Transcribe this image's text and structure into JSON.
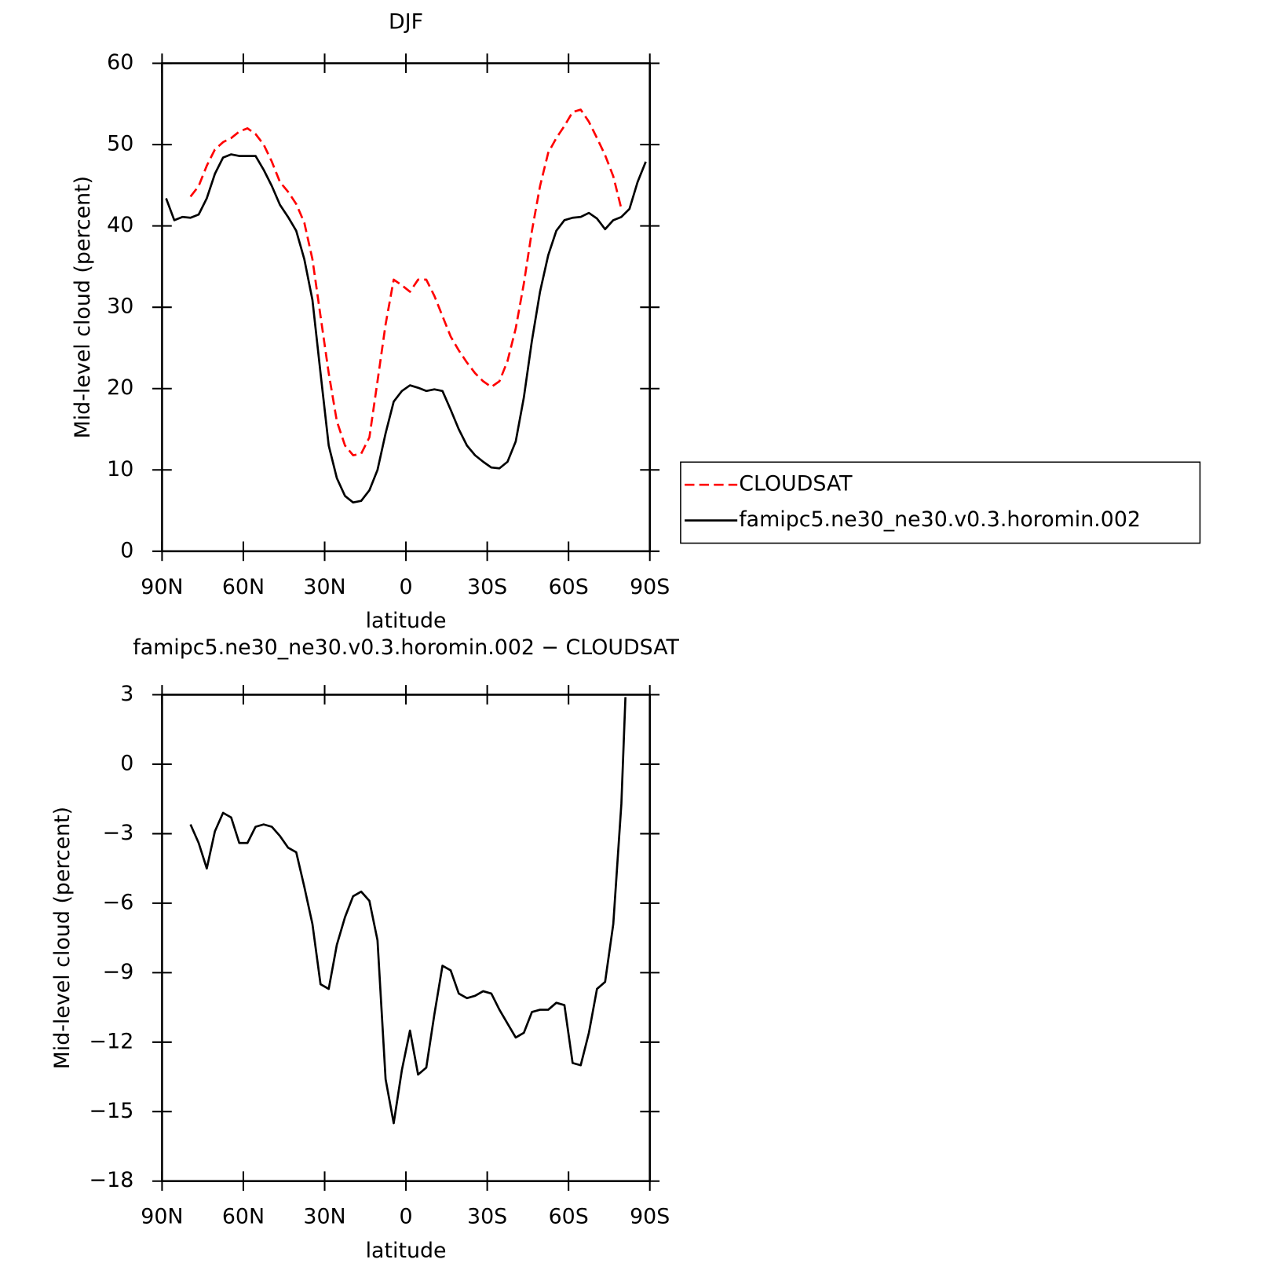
{
  "chart_data": [
    {
      "type": "line",
      "title": "DJF",
      "xlabel": "latitude",
      "ylabel": "Mid-level cloud (percent)",
      "x": [
        88.5,
        85.5,
        82.5,
        79.5,
        76.5,
        73.5,
        70.5,
        67.5,
        64.5,
        61.5,
        58.5,
        55.5,
        52.5,
        49.5,
        46.5,
        43.5,
        40.5,
        37.5,
        34.5,
        31.5,
        28.5,
        25.5,
        22.5,
        19.5,
        16.5,
        13.5,
        10.5,
        7.5,
        4.5,
        1.5,
        -1.5,
        -4.5,
        -7.5,
        -10.5,
        -13.5,
        -16.5,
        -19.5,
        -22.5,
        -25.5,
        -28.5,
        -31.5,
        -34.5,
        -37.5,
        -40.5,
        -43.5,
        -46.5,
        -49.5,
        -52.5,
        -55.5,
        -58.5,
        -61.5,
        -64.5,
        -67.5,
        -70.5,
        -73.5,
        -76.5,
        -79.5,
        -82.5,
        -85.5,
        -88.5
      ],
      "series": [
        {
          "name": "CLOUDSAT",
          "color": "#ff0000",
          "dash": true,
          "values": [
            null,
            null,
            null,
            43.6,
            44.9,
            47.4,
            49.4,
            50.3,
            50.8,
            51.6,
            52.0,
            51.3,
            50.0,
            47.9,
            45.4,
            44.2,
            42.7,
            40.4,
            35.9,
            28.9,
            21.9,
            16.0,
            13.0,
            11.8,
            12.0,
            14.0,
            20.9,
            27.9,
            33.4,
            32.7,
            31.9,
            33.4,
            33.4,
            31.4,
            28.9,
            26.4,
            24.7,
            23.2,
            21.9,
            20.9,
            20.2,
            20.9,
            23.4,
            27.4,
            32.9,
            39.4,
            44.9,
            49.0,
            50.8,
            52.3,
            54.0,
            54.3,
            52.8,
            50.8,
            48.7,
            46.1,
            42.1,
            null,
            null,
            null
          ]
        },
        {
          "name": "famipc5.ne30_ne30.v0.3.horomin.002",
          "color": "#000000",
          "dash": false,
          "values": [
            43.4,
            40.7,
            41.1,
            41.0,
            41.4,
            43.4,
            46.4,
            48.4,
            48.8,
            48.6,
            48.6,
            48.6,
            46.9,
            44.9,
            42.6,
            41.1,
            39.4,
            35.9,
            30.9,
            21.9,
            13.0,
            9.0,
            6.8,
            6.0,
            6.2,
            7.5,
            10.0,
            14.5,
            18.4,
            19.7,
            20.4,
            20.1,
            19.7,
            19.9,
            19.7,
            17.4,
            15.0,
            13.0,
            11.8,
            11.0,
            10.3,
            10.2,
            11.0,
            13.5,
            18.9,
            25.9,
            31.9,
            36.4,
            39.4,
            40.7,
            41.0,
            41.1,
            41.6,
            40.9,
            39.6,
            40.7,
            41.1,
            42.1,
            45.4,
            47.9
          ]
        }
      ],
      "xlim": [
        90,
        -90
      ],
      "xticks": [
        {
          "value": 90,
          "label": "90N"
        },
        {
          "value": 60,
          "label": "60N"
        },
        {
          "value": 30,
          "label": "30N"
        },
        0,
        {
          "value": -30,
          "label": "30S"
        },
        {
          "value": -60,
          "label": "60S"
        },
        {
          "value": -90,
          "label": "90S"
        }
      ],
      "ylim": [
        0,
        60
      ],
      "yticks": [
        0,
        10,
        20,
        30,
        40,
        50,
        60
      ],
      "legend": "right"
    },
    {
      "type": "line",
      "title": "famipc5.ne30_ne30.v0.3.horomin.002 − CLOUDSAT",
      "xlabel": "latitude",
      "ylabel": "Mid-level cloud (percent)",
      "x": [
        79.5,
        76.5,
        73.5,
        70.5,
        67.5,
        64.5,
        61.5,
        58.5,
        55.5,
        52.5,
        49.5,
        46.5,
        43.5,
        40.5,
        37.5,
        34.5,
        31.5,
        28.5,
        25.5,
        22.5,
        19.5,
        16.5,
        13.5,
        10.5,
        7.5,
        4.5,
        1.5,
        -1.5,
        -4.5,
        -7.5,
        -10.5,
        -13.5,
        -16.5,
        -19.5,
        -22.5,
        -25.5,
        -28.5,
        -31.5,
        -34.5,
        -37.5,
        -40.5,
        -43.5,
        -46.5,
        -49.5,
        -52.5,
        -55.5,
        -58.5,
        -61.5,
        -64.5,
        -67.5,
        -70.5,
        -73.5,
        -76.5,
        -79.5,
        -81
      ],
      "series": [
        {
          "color": "#000000",
          "values": [
            -2.6,
            -3.4,
            -4.5,
            -2.9,
            -2.1,
            -2.3,
            -3.4,
            -3.4,
            -2.7,
            -2.6,
            -2.7,
            -3.1,
            -3.6,
            -3.8,
            -5.3,
            -6.9,
            -9.5,
            -9.7,
            -7.8,
            -6.6,
            -5.7,
            -5.5,
            -5.9,
            -7.6,
            -13.6,
            -15.5,
            -13.2,
            -11.5,
            -13.4,
            -13.1,
            -10.8,
            -8.7,
            -8.9,
            -9.9,
            -10.1,
            -10.0,
            -9.8,
            -9.9,
            -10.6,
            -11.2,
            -11.8,
            -11.6,
            -10.7,
            -10.6,
            -10.6,
            -10.3,
            -10.4,
            -12.9,
            -13.0,
            -11.6,
            -9.7,
            -9.4,
            -6.9,
            -1.7,
            2.9
          ]
        }
      ],
      "xlim": [
        90,
        -90
      ],
      "xticks": [
        {
          "value": 90,
          "label": "90N"
        },
        {
          "value": 60,
          "label": "60N"
        },
        {
          "value": 30,
          "label": "30N"
        },
        0,
        {
          "value": -30,
          "label": "30S"
        },
        {
          "value": -60,
          "label": "60S"
        },
        {
          "value": -90,
          "label": "90S"
        }
      ],
      "ylim": [
        -18,
        3
      ],
      "yticks": [
        {
          "value": -18,
          "label": "−18"
        },
        {
          "value": -15,
          "label": "−15"
        },
        {
          "value": -12,
          "label": "−12"
        },
        {
          "value": -9,
          "label": "−9"
        },
        {
          "value": -6,
          "label": "−6"
        },
        {
          "value": -3,
          "label": "−3"
        },
        0,
        3
      ]
    }
  ]
}
